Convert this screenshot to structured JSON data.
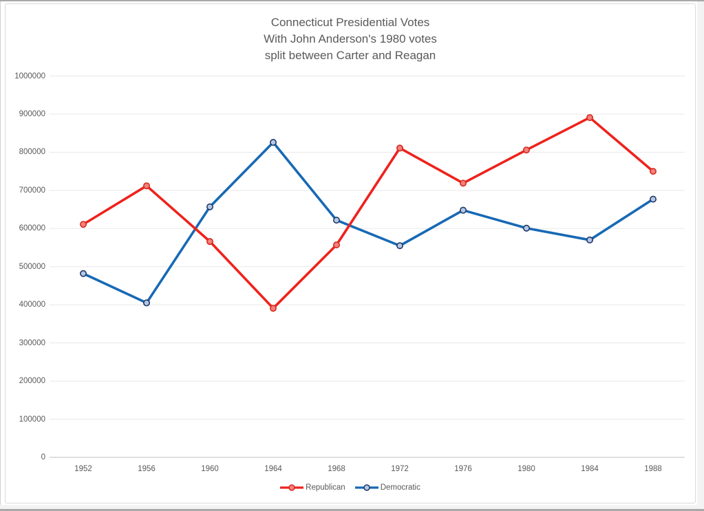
{
  "chart_data": {
    "type": "line",
    "title_lines": [
      "Connecticut Presidential Votes",
      "With John Anderson's 1980 votes",
      "split between Carter and Reagan"
    ],
    "categories": [
      "1952",
      "1956",
      "1960",
      "1964",
      "1968",
      "1972",
      "1976",
      "1980",
      "1984",
      "1988"
    ],
    "series": [
      {
        "name": "Republican",
        "line_color": "#ee221c",
        "marker_fill": "#f4807a",
        "marker_stroke": "#d42a1e",
        "values": [
          611000,
          712000,
          566000,
          391000,
          557000,
          811000,
          719000,
          806000,
          891000,
          750000
        ]
      },
      {
        "name": "Democratic",
        "line_color": "#1769b4",
        "marker_fill": "#b4c7e7",
        "marker_stroke": "#1f3864",
        "values": [
          482000,
          405000,
          657000,
          826000,
          622000,
          555000,
          648000,
          601000,
          570000,
          677000
        ]
      }
    ],
    "ylim": [
      0,
      1000000
    ],
    "ytick_step": 100000,
    "ytick_labels": [
      "0",
      "100000",
      "200000",
      "300000",
      "400000",
      "500000",
      "600000",
      "700000",
      "800000",
      "900000",
      "1000000"
    ],
    "xlabel": "",
    "ylabel": "",
    "grid": true,
    "legend_position": "bottom",
    "text_color": "#595959",
    "gridline_color": "#e8e8e8",
    "axis_line_color": "#c9c9c9"
  }
}
